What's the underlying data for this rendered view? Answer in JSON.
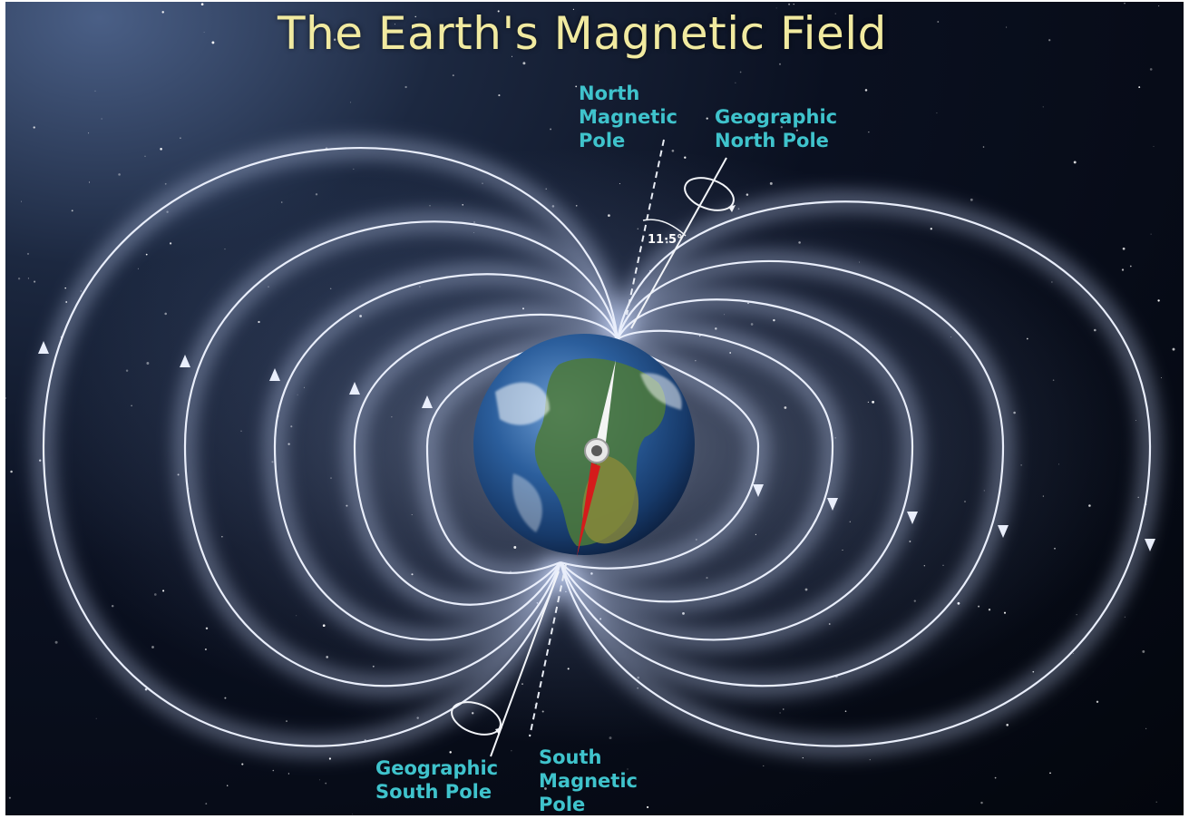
{
  "title": "The Earth's Magnetic Field",
  "labels": {
    "north_magnetic_pole": [
      "North",
      "Magnetic",
      "Pole"
    ],
    "geographic_north_pole": [
      "Geographic",
      "North Pole"
    ],
    "geographic_south_pole": [
      "Geographic",
      "South Pole"
    ],
    "south_magnetic_pole": [
      "South",
      "Magnetic",
      "Pole"
    ],
    "tilt_angle": "11·5°"
  },
  "colors": {
    "title": "#f1eaa0",
    "labels": "#3fc3cc",
    "field_lines": "#e9eefb",
    "needle_north": "#f4f4f4",
    "needle_south": "#d51b1b"
  }
}
